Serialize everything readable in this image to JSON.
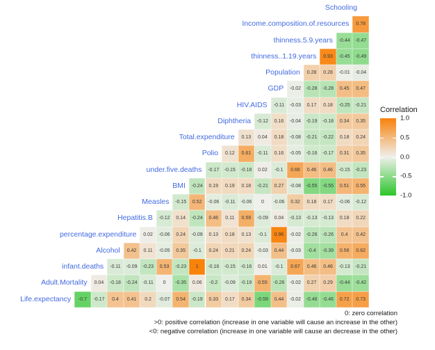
{
  "chart_data": {
    "type": "heatmap",
    "subtype": "triangular-correlation-matrix",
    "title": "",
    "value_range": [
      -1.0,
      1.0
    ],
    "colors": {
      "high": "#F8820A",
      "mid": "#EFEFEB",
      "low": "#2BC62B",
      "label": "#4169E1",
      "cell_text": "#3A3A3A"
    },
    "legend": {
      "title": "Correlation",
      "ticks": [
        "1.0",
        "0.5",
        "0.0",
        "-0.5",
        "-1.0"
      ],
      "position": "right"
    },
    "rows": [
      {
        "label": "Schooling",
        "values": []
      },
      {
        "label": "Income.composition.of.resources",
        "values": [
          "0.78"
        ]
      },
      {
        "label": "thinness.5.9.years",
        "values": [
          "-0.44",
          "-0.47"
        ]
      },
      {
        "label": "thinness..1.19.years",
        "values": [
          "0.93",
          "-0.45",
          "-0.49"
        ]
      },
      {
        "label": "Population",
        "values": [
          "0.28",
          "0.28",
          "-0.01",
          "-0.04"
        ]
      },
      {
        "label": "GDP",
        "values": [
          "-0.02",
          "-0.28",
          "-0.28",
          "0.45",
          "0.47"
        ]
      },
      {
        "label": "HIV.AIDS",
        "values": [
          "-0.11",
          "-0.03",
          "0.17",
          "0.18",
          "-0.25",
          "-0.21"
        ]
      },
      {
        "label": "Diphtheria",
        "values": [
          "-0.12",
          "0.16",
          "-0.04",
          "-0.19",
          "-0.18",
          "0.34",
          "0.35"
        ]
      },
      {
        "label": "Total.expenditure",
        "values": [
          "0.13",
          "0.04",
          "0.18",
          "-0.08",
          "-0.21",
          "-0.22",
          "0.18",
          "0.24"
        ]
      },
      {
        "label": "Polio",
        "values": [
          "0.12",
          "0.61",
          "-0.11",
          "0.16",
          "-0.05",
          "-0.16",
          "-0.17",
          "0.31",
          "0.35"
        ]
      },
      {
        "label": "under.five.deaths",
        "values": [
          "-0.17",
          "-0.15",
          "-0.18",
          "0.02",
          "-0.1",
          "0.66",
          "0.46",
          "0.46",
          "-0.15",
          "-0.23"
        ]
      },
      {
        "label": "BMI",
        "values": [
          "-0.24",
          "0.19",
          "0.19",
          "0.18",
          "-0.21",
          "0.27",
          "-0.08",
          "-0.55",
          "-0.55",
          "0.51",
          "0.55"
        ]
      },
      {
        "label": "Measles",
        "values": [
          "-0.15",
          "0.52",
          "-0.06",
          "-0.11",
          "-0.06",
          "0",
          "-0.06",
          "0.32",
          "0.18",
          "0.17",
          "-0.06",
          "-0.12"
        ]
      },
      {
        "label": "Hepatitis.B",
        "values": [
          "-0.12",
          "0.14",
          "-0.24",
          "0.46",
          "0.11",
          "0.59",
          "-0.09",
          "0.04",
          "-0.13",
          "-0.13",
          "-0.13",
          "0.18",
          "0.22"
        ]
      },
      {
        "label": "percentage.expenditure",
        "values": [
          "0.02",
          "-0.06",
          "0.24",
          "-0.09",
          "0.13",
          "0.18",
          "0.13",
          "-0.1",
          "0.96",
          "-0.02",
          "-0.26",
          "-0.26",
          "0.4",
          "0.42"
        ]
      },
      {
        "label": "Alcohol",
        "values": [
          "0.42",
          "0.11",
          "-0.05",
          "0.35",
          "-0.1",
          "0.24",
          "0.21",
          "0.24",
          "-0.03",
          "0.44",
          "-0.03",
          "-0.4",
          "-0.39",
          "0.56",
          "0.62"
        ]
      },
      {
        "label": "infant.deaths",
        "values": [
          "-0.11",
          "-0.09",
          "-0.23",
          "0.53",
          "-0.23",
          "1",
          "-0.16",
          "-0.15",
          "-0.16",
          "0.01",
          "-0.1",
          "0.67",
          "0.46",
          "0.46",
          "-0.13",
          "-0.21"
        ]
      },
      {
        "label": "Adult.Mortality",
        "values": [
          "0.04",
          "-0.18",
          "-0.24",
          "-0.11",
          "0",
          "-0.35",
          "0.06",
          "-0.2",
          "-0.09",
          "-0.19",
          "0.55",
          "-0.26",
          "-0.02",
          "0.27",
          "0.29",
          "-0.44",
          "-0.42"
        ]
      },
      {
        "label": "Life.expectancy",
        "values": [
          "-0.7",
          "-0.17",
          "0.4",
          "0.41",
          "0.2",
          "-0.07",
          "0.54",
          "-0.19",
          "0.33",
          "0.17",
          "0.34",
          "-0.59",
          "0.44",
          "-0.02",
          "-0.46",
          "-0.46",
          "0.72",
          "0.73"
        ]
      }
    ],
    "caption": [
      "0: zero correlation",
      ">0: positive correlation (increase in one variable will cause an increase in the other)",
      "<0: negative correlation (increase in one variable will cause an decrease in the other)"
    ]
  }
}
